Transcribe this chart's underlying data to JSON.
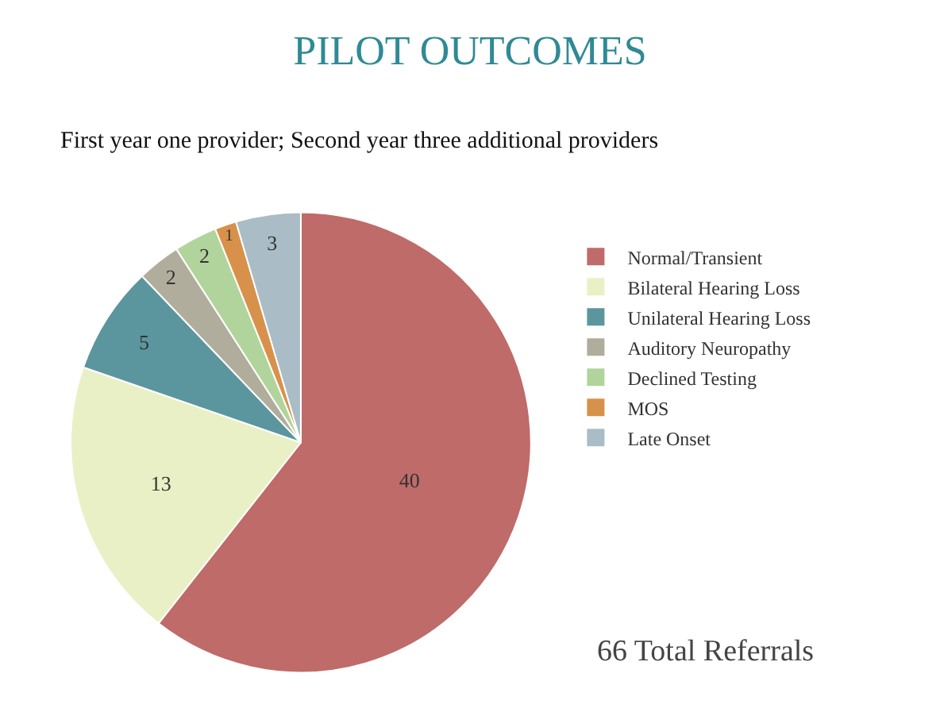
{
  "chart_data": {
    "type": "pie",
    "title": "PILOT OUTCOMES",
    "subtitle": "First year one provider; Second year three additional providers",
    "categories": [
      "Normal/Transient",
      "Bilateral Hearing Loss",
      "Unilateral Hearing Loss",
      "Auditory Neuropathy",
      "Declined Testing",
      "MOS",
      "Late Onset"
    ],
    "values": [
      40,
      13,
      5,
      2,
      2,
      1,
      3
    ],
    "colors": [
      "#bf6b69",
      "#eaf0c5",
      "#5b969e",
      "#b1ad9c",
      "#b1d49c",
      "#d8914a",
      "#aabcc6"
    ],
    "data_labels": true,
    "legend": "right",
    "annotations": [
      "66 Total Referrals"
    ]
  }
}
